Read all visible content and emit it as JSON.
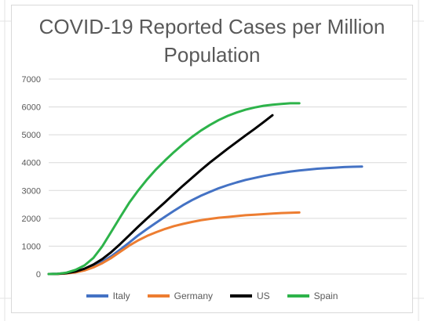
{
  "chart_data": {
    "type": "line",
    "title_lines": [
      "COVID-19 Reported Cases per Million",
      "Population"
    ],
    "xlabel": "",
    "ylabel": "",
    "ylim": [
      0,
      7000
    ],
    "yticks": [
      0,
      1000,
      2000,
      3000,
      4000,
      5000,
      6000,
      7000
    ],
    "grid": true,
    "legend_position": "bottom",
    "x": [
      0,
      3,
      6,
      9,
      12,
      15,
      18,
      21,
      24,
      27,
      30,
      33,
      36,
      39,
      42,
      45,
      48,
      51,
      54,
      57,
      60,
      63,
      66,
      69,
      72,
      75,
      78,
      81,
      84,
      87,
      90,
      93,
      96,
      99,
      102,
      105,
      108,
      111,
      114,
      117,
      120
    ],
    "series": [
      {
        "name": "Italy",
        "color": "#4472C4",
        "values": [
          0,
          5,
          30,
          80,
          160,
          280,
          440,
          640,
          880,
          1130,
          1390,
          1620,
          1840,
          2060,
          2270,
          2470,
          2650,
          2810,
          2950,
          3080,
          3190,
          3290,
          3380,
          3450,
          3520,
          3580,
          3630,
          3680,
          3720,
          3750,
          3780,
          3800,
          3820,
          3840,
          3850,
          3860,
          null,
          null,
          null,
          null,
          null
        ]
      },
      {
        "name": "Germany",
        "color": "#ED7D31",
        "values": [
          0,
          3,
          20,
          60,
          130,
          240,
          390,
          580,
          800,
          1020,
          1210,
          1370,
          1500,
          1620,
          1720,
          1800,
          1870,
          1930,
          1980,
          2020,
          2050,
          2080,
          2110,
          2130,
          2150,
          2170,
          2190,
          2200,
          2210,
          null,
          null,
          null,
          null,
          null,
          null,
          null,
          null,
          null,
          null,
          null,
          null
        ]
      },
      {
        "name": "US",
        "color": "#000000",
        "values": [
          0,
          5,
          30,
          90,
          190,
          340,
          540,
          790,
          1080,
          1390,
          1700,
          2000,
          2290,
          2580,
          2880,
          3170,
          3450,
          3730,
          4000,
          4250,
          4500,
          4740,
          4980,
          5210,
          5450,
          5700,
          null,
          null,
          null,
          null,
          null,
          null,
          null,
          null,
          null,
          null,
          null,
          null,
          null,
          null,
          null
        ]
      },
      {
        "name": "Spain",
        "color": "#2DB34A",
        "values": [
          0,
          8,
          50,
          150,
          310,
          580,
          1000,
          1520,
          2050,
          2560,
          3000,
          3400,
          3760,
          4080,
          4380,
          4660,
          4920,
          5150,
          5350,
          5530,
          5680,
          5800,
          5900,
          5980,
          6040,
          6080,
          6110,
          6130,
          6130,
          null,
          null,
          null,
          null,
          null,
          null,
          null,
          null,
          null,
          null,
          null,
          null
        ]
      }
    ]
  }
}
